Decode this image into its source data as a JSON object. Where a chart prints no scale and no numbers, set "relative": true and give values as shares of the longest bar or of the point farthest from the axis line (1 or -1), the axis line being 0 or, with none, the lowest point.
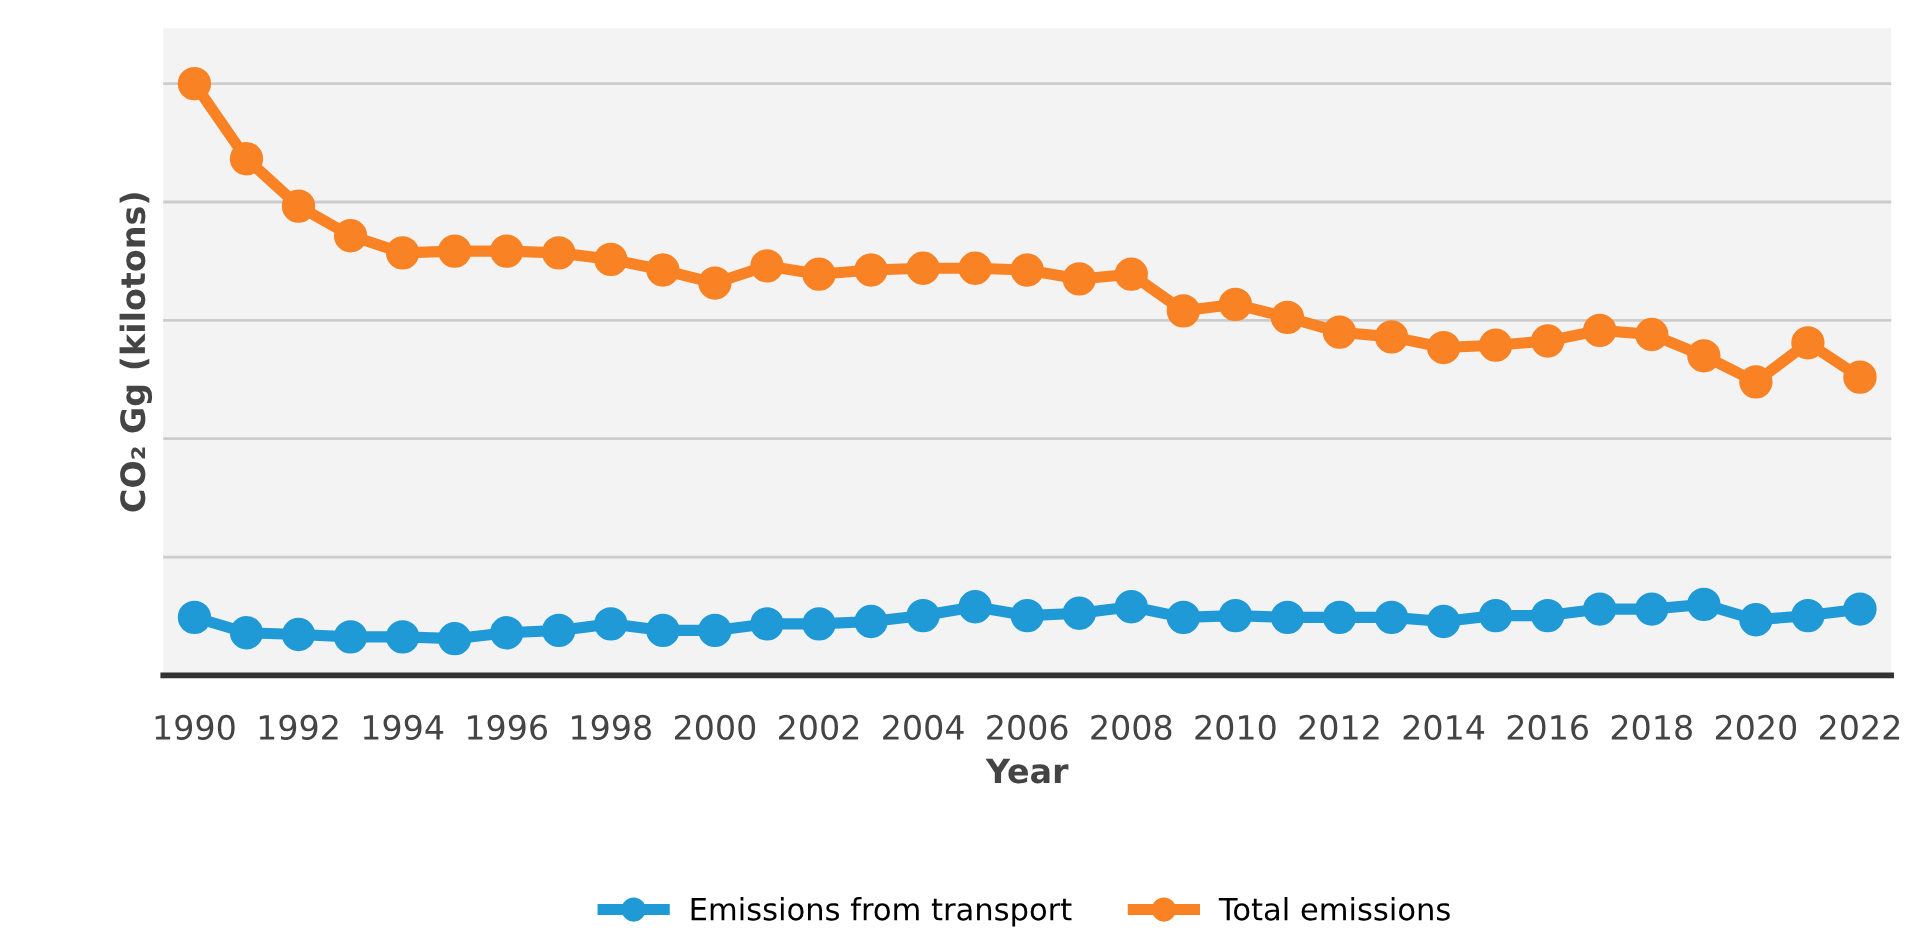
{
  "chart_data": {
    "type": "line",
    "xlabel": "Year",
    "ylabel": "CO₂ Gg (kilotons)",
    "relative": true,
    "grid": "y",
    "legend": "bottom",
    "marker": "circle",
    "line_style": "solid",
    "categories": [
      "1990",
      null,
      "1992",
      null,
      "1994",
      null,
      "1996",
      null,
      "1998",
      null,
      "2000",
      null,
      "2002",
      null,
      "2004",
      null,
      "2006",
      null,
      "2008",
      null,
      "2010",
      null,
      "2012",
      null,
      "2014",
      null,
      "2016",
      null,
      "2018",
      null,
      "2020",
      null,
      "2022"
    ],
    "series": [
      {
        "name": "Emissions from transport",
        "color": "#1f9ad6",
        "values": [
          0.098,
          0.072,
          0.069,
          0.065,
          0.065,
          0.062,
          0.072,
          0.076,
          0.087,
          0.076,
          0.076,
          0.087,
          0.087,
          0.091,
          0.101,
          0.116,
          0.101,
          0.105,
          0.116,
          0.098,
          0.101,
          0.098,
          0.098,
          0.098,
          0.091,
          0.101,
          0.101,
          0.112,
          0.112,
          0.12,
          0.094,
          0.101,
          0.112
        ]
      },
      {
        "name": "Total emissions",
        "color": "#f98224",
        "values": [
          1.0,
          0.873,
          0.793,
          0.743,
          0.714,
          0.717,
          0.717,
          0.714,
          0.703,
          0.685,
          0.663,
          0.692,
          0.678,
          0.685,
          0.688,
          0.688,
          0.685,
          0.67,
          0.678,
          0.616,
          0.627,
          0.605,
          0.58,
          0.572,
          0.554,
          0.558,
          0.565,
          0.583,
          0.576,
          0.54,
          0.496,
          0.562,
          0.504
        ]
      }
    ]
  }
}
